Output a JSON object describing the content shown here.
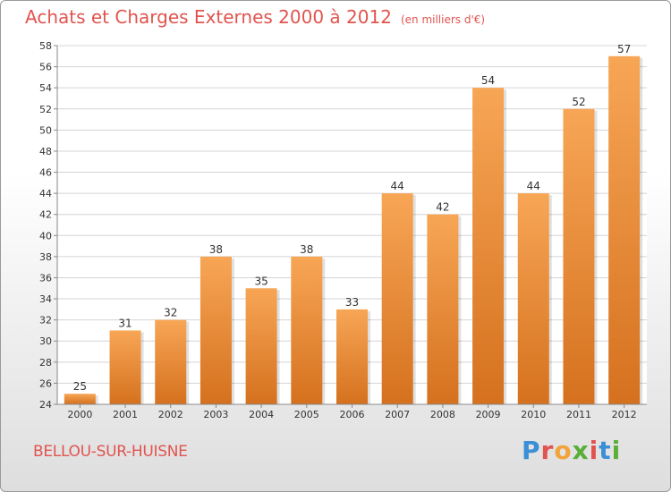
{
  "title": "Achats et Charges Externes 2000 à 2012",
  "unit_note": "(en milliers d'€)",
  "commune": "BELLOU-SUR-HUISNE",
  "logo_text": "Proxiti",
  "colors": {
    "title": "#e0544f",
    "bar_top": "#f7a656",
    "bar_bottom": "#d5711e",
    "logo": [
      "#3a8fd6",
      "#e0544f",
      "#f2a43a",
      "#5aae3a",
      "#e0544f",
      "#3a8fd6",
      "#5aae3a"
    ]
  },
  "chart_data": {
    "type": "bar",
    "categories": [
      "2000",
      "2001",
      "2002",
      "2003",
      "2004",
      "2005",
      "2006",
      "2007",
      "2008",
      "2009",
      "2010",
      "2011",
      "2012"
    ],
    "values": [
      25,
      31,
      32,
      38,
      35,
      38,
      33,
      44,
      42,
      54,
      44,
      52,
      57
    ],
    "title": "Achats et Charges Externes 2000 à 2012",
    "ylim": [
      24,
      58
    ],
    "yticks": [
      24,
      26,
      28,
      30,
      32,
      34,
      36,
      38,
      40,
      42,
      44,
      46,
      48,
      50,
      52,
      54,
      56,
      58
    ],
    "grid": true
  }
}
